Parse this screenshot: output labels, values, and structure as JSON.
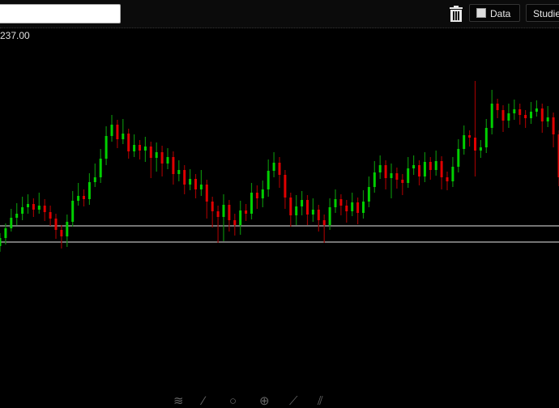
{
  "toolbar": {
    "symbol_input_value": "",
    "trash_icon": "trash-icon",
    "data_label": "Data",
    "data_checked": false,
    "studies_label": "Studies"
  },
  "price_label": "237.00",
  "bottom_tools": [
    "draw-icon",
    "pencil-icon",
    "circle-icon",
    "crosshair-icon",
    "line-icon",
    "multi-line-icon"
  ],
  "colors": {
    "up": "#00d000",
    "down": "#e00000",
    "up_wick": "#0a8a0a",
    "down_wick": "#9a0000",
    "hline": "#9a9a9a",
    "background": "#000000"
  },
  "chart_data": {
    "type": "candlestick",
    "title": "",
    "ylim": [
      192.4,
      238.4
    ],
    "grid": false,
    "horizontal_lines": [
      213.5,
      211.5
    ],
    "candles_ohlc": [
      [
        211.0,
        212.6,
        210.3,
        212.0
      ],
      [
        212.0,
        213.8,
        211.2,
        213.2
      ],
      [
        213.2,
        215.6,
        212.8,
        214.5
      ],
      [
        214.5,
        216.3,
        213.6,
        215.0
      ],
      [
        215.0,
        217.1,
        214.2,
        215.8
      ],
      [
        215.8,
        217.4,
        215.0,
        216.2
      ],
      [
        216.2,
        216.9,
        214.6,
        215.5
      ],
      [
        215.5,
        217.6,
        215.0,
        216.0
      ],
      [
        216.0,
        216.8,
        214.1,
        215.2
      ],
      [
        215.2,
        216.0,
        213.5,
        214.4
      ],
      [
        214.4,
        215.0,
        211.9,
        213.0
      ],
      [
        213.0,
        213.6,
        210.7,
        212.2
      ],
      [
        212.2,
        214.9,
        210.9,
        214.0
      ],
      [
        214.0,
        217.8,
        213.4,
        216.6
      ],
      [
        216.6,
        218.8,
        216.0,
        217.2
      ],
      [
        217.2,
        218.0,
        215.9,
        216.8
      ],
      [
        216.8,
        220.0,
        216.1,
        218.9
      ],
      [
        218.9,
        221.2,
        218.3,
        219.5
      ],
      [
        219.5,
        223.0,
        218.8,
        221.8
      ],
      [
        221.8,
        225.8,
        221.0,
        224.6
      ],
      [
        224.6,
        227.2,
        223.9,
        226.0
      ],
      [
        226.0,
        226.6,
        223.1,
        224.2
      ],
      [
        224.2,
        226.7,
        223.6,
        224.9
      ],
      [
        224.9,
        225.5,
        221.8,
        222.7
      ],
      [
        222.7,
        224.8,
        222.0,
        223.5
      ],
      [
        223.5,
        224.1,
        221.7,
        222.8
      ],
      [
        222.8,
        224.5,
        221.4,
        223.3
      ],
      [
        223.3,
        223.9,
        219.4,
        221.9
      ],
      [
        221.9,
        223.8,
        220.2,
        222.6
      ],
      [
        222.6,
        223.4,
        219.6,
        221.2
      ],
      [
        221.2,
        223.1,
        220.5,
        222.0
      ],
      [
        222.0,
        222.7,
        218.6,
        219.9
      ],
      [
        219.9,
        221.6,
        219.0,
        220.4
      ],
      [
        220.4,
        221.0,
        217.4,
        218.6
      ],
      [
        218.6,
        220.5,
        217.9,
        219.3
      ],
      [
        219.3,
        219.9,
        216.9,
        218.0
      ],
      [
        218.0,
        220.4,
        217.2,
        218.6
      ],
      [
        218.6,
        219.2,
        214.4,
        216.5
      ],
      [
        216.5,
        217.1,
        213.3,
        215.3
      ],
      [
        215.3,
        216.0,
        211.4,
        214.6
      ],
      [
        214.6,
        217.4,
        211.6,
        216.1
      ],
      [
        216.1,
        216.7,
        212.8,
        214.2
      ],
      [
        214.2,
        215.0,
        212.3,
        213.6
      ],
      [
        213.6,
        216.6,
        212.4,
        215.4
      ],
      [
        215.4,
        216.2,
        214.1,
        215.0
      ],
      [
        215.0,
        218.8,
        214.3,
        217.6
      ],
      [
        217.6,
        218.5,
        215.6,
        216.9
      ],
      [
        216.9,
        219.1,
        215.8,
        218.0
      ],
      [
        218.0,
        221.7,
        217.1,
        220.3
      ],
      [
        220.3,
        222.6,
        219.5,
        221.3
      ],
      [
        221.3,
        222.0,
        218.2,
        219.8
      ],
      [
        219.8,
        220.4,
        215.6,
        217.0
      ],
      [
        217.0,
        217.6,
        213.4,
        214.8
      ],
      [
        214.8,
        217.3,
        213.6,
        215.9
      ],
      [
        215.9,
        217.8,
        214.8,
        216.7
      ],
      [
        216.7,
        217.3,
        213.6,
        214.9
      ],
      [
        214.9,
        216.9,
        214.0,
        215.5
      ],
      [
        215.5,
        216.1,
        212.8,
        214.2
      ],
      [
        214.2,
        214.9,
        211.4,
        213.6
      ],
      [
        213.6,
        216.9,
        213.0,
        215.8
      ],
      [
        215.8,
        218.0,
        215.1,
        216.8
      ],
      [
        216.8,
        217.4,
        214.8,
        216.0
      ],
      [
        216.0,
        216.7,
        213.9,
        215.3
      ],
      [
        215.3,
        217.6,
        214.7,
        216.4
      ],
      [
        216.4,
        217.0,
        213.7,
        215.1
      ],
      [
        215.1,
        217.9,
        214.4,
        216.5
      ],
      [
        216.5,
        219.6,
        215.8,
        218.3
      ],
      [
        218.3,
        221.5,
        217.6,
        220.1
      ],
      [
        220.1,
        222.2,
        219.3,
        221.0
      ],
      [
        221.0,
        221.6,
        218.0,
        219.4
      ],
      [
        219.4,
        221.2,
        216.9,
        220.0
      ],
      [
        220.0,
        220.7,
        218.1,
        219.2
      ],
      [
        219.2,
        219.9,
        217.3,
        218.8
      ],
      [
        218.8,
        222.0,
        218.2,
        220.6
      ],
      [
        220.6,
        222.2,
        219.8,
        221.0
      ],
      [
        221.0,
        221.6,
        218.5,
        219.6
      ],
      [
        219.6,
        222.6,
        218.9,
        221.4
      ],
      [
        221.4,
        222.0,
        219.2,
        220.4
      ],
      [
        220.4,
        222.8,
        219.7,
        221.5
      ],
      [
        221.5,
        222.1,
        218.0,
        219.5
      ],
      [
        219.5,
        220.2,
        217.9,
        219.0
      ],
      [
        219.0,
        222.0,
        218.3,
        220.8
      ],
      [
        220.8,
        224.2,
        220.1,
        223.0
      ],
      [
        223.0,
        225.9,
        222.3,
        224.7
      ],
      [
        224.7,
        225.3,
        223.3,
        224.4
      ],
      [
        224.4,
        231.4,
        219.6,
        222.8
      ],
      [
        222.8,
        224.1,
        221.9,
        223.2
      ],
      [
        223.2,
        226.7,
        222.5,
        225.6
      ],
      [
        225.6,
        230.3,
        224.8,
        228.6
      ],
      [
        228.6,
        229.2,
        226.8,
        227.8
      ],
      [
        227.8,
        228.4,
        225.1,
        226.5
      ],
      [
        226.5,
        228.6,
        225.6,
        227.4
      ],
      [
        227.4,
        229.1,
        226.6,
        227.9
      ],
      [
        227.9,
        228.6,
        226.0,
        227.2
      ],
      [
        227.2,
        227.8,
        225.6,
        226.8
      ],
      [
        226.8,
        228.8,
        226.1,
        227.6
      ],
      [
        227.6,
        229.0,
        227.0,
        228.0
      ],
      [
        228.0,
        228.6,
        225.0,
        226.4
      ],
      [
        226.4,
        228.3,
        225.7,
        226.9
      ],
      [
        226.9,
        227.5,
        223.2,
        224.8
      ],
      [
        224.8,
        225.3,
        218.4,
        219.5
      ]
    ]
  }
}
